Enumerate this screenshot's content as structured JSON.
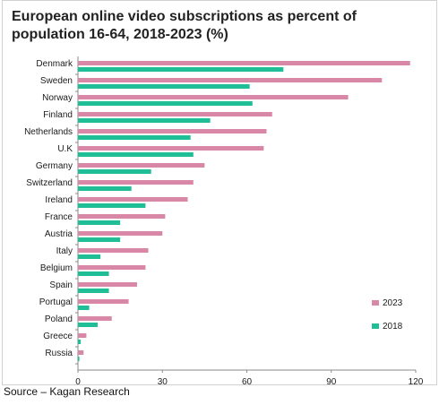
{
  "title": "European online video subscriptions as percent of population 16-64, 2018-2023 (%)",
  "source": "Source – Kagan Research",
  "colors": {
    "series_2023": "#d987a6",
    "series_2018": "#1fbe96",
    "axis": "#8a8a8a"
  },
  "chart_data": {
    "type": "bar",
    "orientation": "horizontal",
    "categories": [
      "Denmark",
      "Sweden",
      "Norway",
      "Finland",
      "Netherlands",
      "U.K",
      "Germany",
      "Switzerland",
      "Ireland",
      "France",
      "Austria",
      "Italy",
      "Belgium",
      "Spain",
      "Portugal",
      "Poland",
      "Greece",
      "Russia"
    ],
    "series": [
      {
        "name": "2023",
        "values": [
          118,
          108,
          96,
          69,
          67,
          66,
          45,
          41,
          39,
          31,
          30,
          25,
          24,
          21,
          18,
          12,
          3,
          2
        ]
      },
      {
        "name": "2018",
        "values": [
          73,
          61,
          62,
          47,
          40,
          41,
          26,
          19,
          24,
          15,
          15,
          8,
          11,
          11,
          4,
          7,
          1,
          0.5
        ]
      }
    ],
    "xlim": [
      0,
      120
    ],
    "xticks": [
      0,
      30,
      60,
      90,
      120
    ],
    "grid": false,
    "legend_position": "bottom-right"
  }
}
